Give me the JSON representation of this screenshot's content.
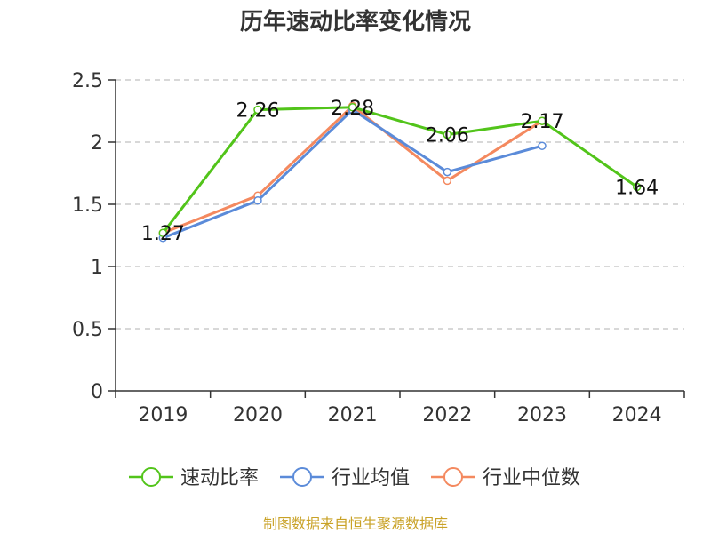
{
  "chart_data": {
    "type": "line",
    "title": "历年速动比率变化情况",
    "xlabel": "",
    "ylabel": "",
    "categories": [
      "2019",
      "2020",
      "2021",
      "2022",
      "2023",
      "2024"
    ],
    "ylim": [
      0,
      2.5
    ],
    "yticks": [
      "0",
      "0.5",
      "1",
      "1.5",
      "2",
      "2.5"
    ],
    "grid": true,
    "legend_position": "bottom",
    "series": [
      {
        "name": "速动比率",
        "color": "#52c41a",
        "values": [
          1.27,
          2.26,
          2.28,
          2.06,
          2.17,
          1.64
        ],
        "labels": [
          "1.27",
          "2.26",
          "2.28",
          "2.06",
          "2.17",
          "1.64"
        ]
      },
      {
        "name": "行业均值",
        "color": "#5b8bd9",
        "values": [
          1.23,
          1.53,
          2.26,
          1.76,
          1.97,
          null
        ]
      },
      {
        "name": "行业中位数",
        "color": "#f4895f",
        "values": [
          1.27,
          1.57,
          2.29,
          1.69,
          2.17,
          null
        ]
      }
    ]
  },
  "source_text": "制图数据来自恒生聚源数据库"
}
